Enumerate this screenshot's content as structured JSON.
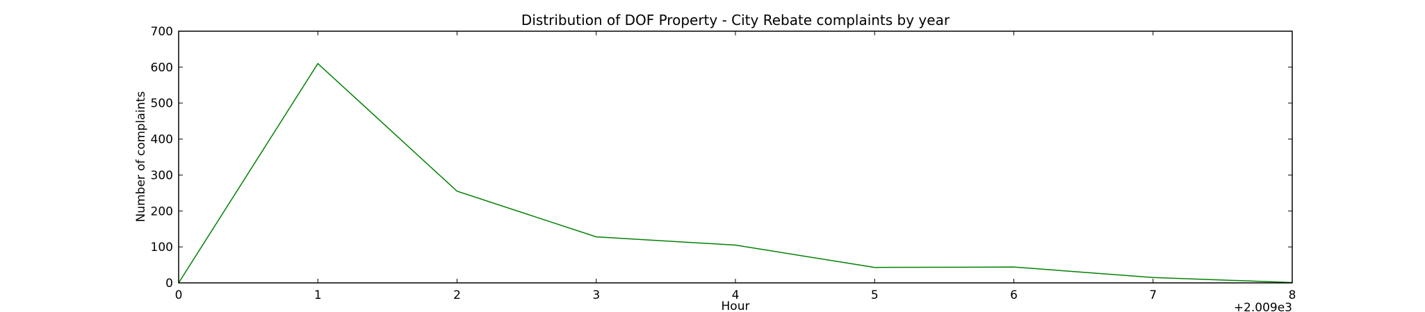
{
  "chart_data": {
    "type": "line",
    "title": "Distribution of  DOF Property - City Rebate complaints by year",
    "xlabel": "Hour",
    "ylabel": "Number of complaints",
    "offset_text": "+2.009e3",
    "x": [
      0,
      1,
      2,
      3,
      4,
      5,
      6,
      7,
      8
    ],
    "series": [
      {
        "values": [
          0,
          610,
          255,
          128,
          105,
          43,
          44,
          15,
          1
        ]
      }
    ],
    "xlim": [
      0,
      8
    ],
    "ylim": [
      0,
      700
    ],
    "xticks": [
      0,
      1,
      2,
      3,
      4,
      5,
      6,
      7,
      8
    ],
    "yticks": [
      0,
      100,
      200,
      300,
      400,
      500,
      600,
      700
    ],
    "line_color": "#008000",
    "grid": false,
    "legend": "none"
  }
}
